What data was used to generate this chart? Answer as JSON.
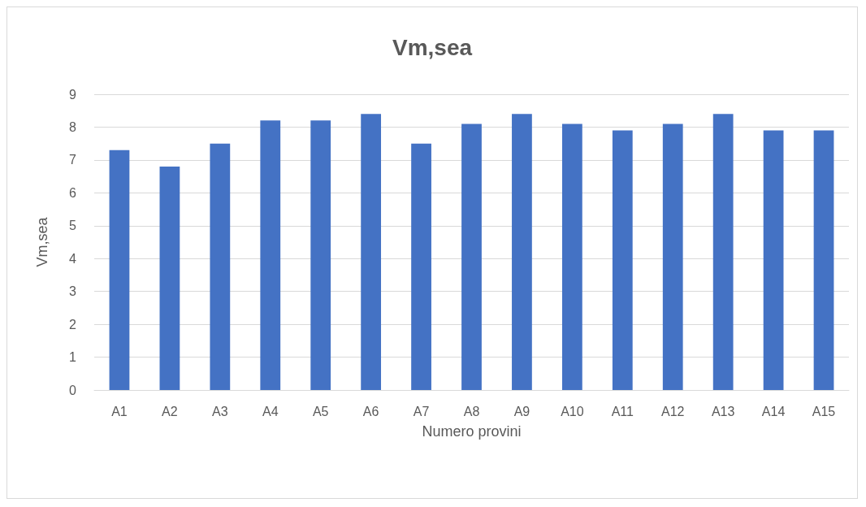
{
  "chart_data": {
    "type": "bar",
    "title": "Vm,sea",
    "xlabel": "Numero provini",
    "ylabel": "Vm,sea",
    "categories": [
      "A1",
      "A2",
      "A3",
      "A4",
      "A5",
      "A6",
      "A7",
      "A8",
      "A9",
      "A10",
      "A11",
      "A12",
      "A13",
      "A14",
      "A15"
    ],
    "values": [
      7.3,
      6.8,
      7.5,
      8.2,
      8.2,
      8.4,
      7.5,
      8.1,
      8.4,
      8.1,
      7.9,
      8.1,
      8.4,
      7.9,
      7.9
    ],
    "color": "#4472c4",
    "ylim": [
      0,
      9
    ],
    "yticks": [
      0,
      1,
      2,
      3,
      4,
      5,
      6,
      7,
      8,
      9
    ],
    "grid": "y"
  }
}
